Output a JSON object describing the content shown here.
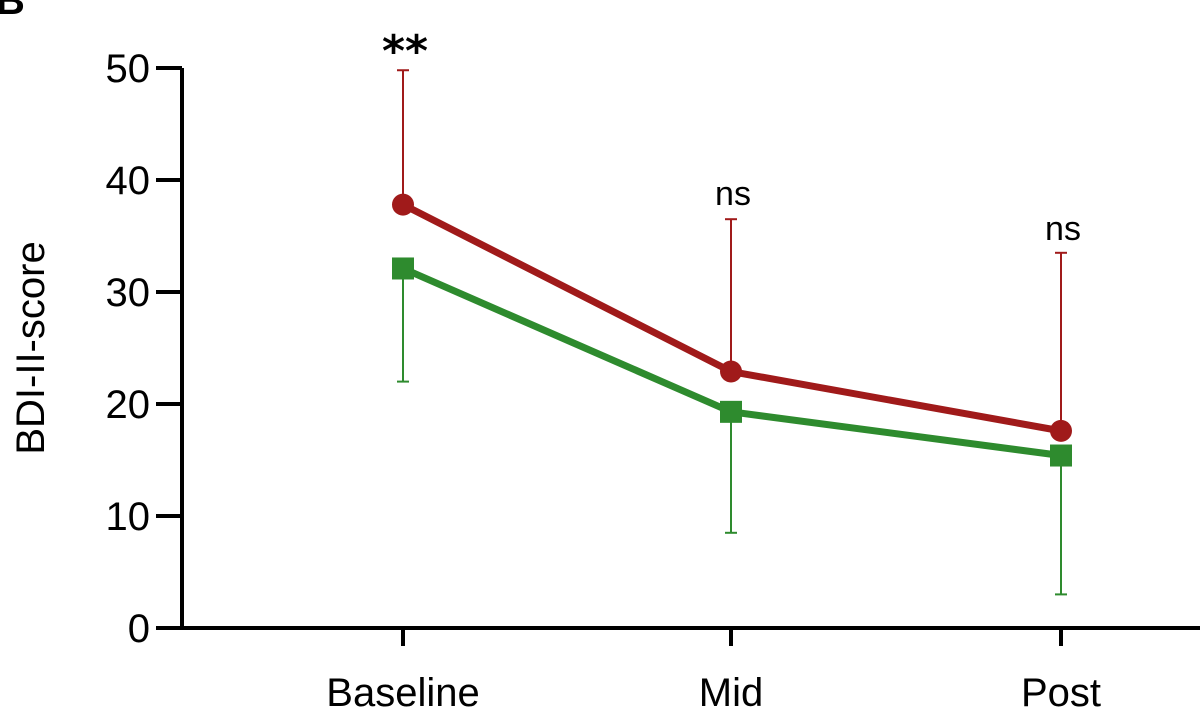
{
  "panel_label": "B",
  "chart_data": {
    "type": "line",
    "categories": [
      "Baseline",
      "Mid",
      "Post"
    ],
    "ylabel": "BDI-II-score",
    "xlabel": "",
    "ylim": [
      0,
      50
    ],
    "yticks": [
      0,
      10,
      20,
      30,
      40,
      50
    ],
    "grid": false,
    "legend": "none",
    "series": [
      {
        "color": "#a01a1a",
        "marker": "circle",
        "values": [
          37.8,
          22.9,
          17.6
        ],
        "error_upper": [
          49.8,
          36.5,
          33.5
        ],
        "error_direction": "up"
      },
      {
        "color": "#2e8b2e",
        "marker": "square",
        "values": [
          32.1,
          19.3,
          15.4
        ],
        "error_lower": [
          22.0,
          8.5,
          3.0
        ],
        "error_direction": "down"
      }
    ],
    "annotations": [
      {
        "category": "Baseline",
        "text": "**"
      },
      {
        "category": "Mid",
        "text": "ns"
      },
      {
        "category": "Post",
        "text": "ns"
      }
    ]
  }
}
